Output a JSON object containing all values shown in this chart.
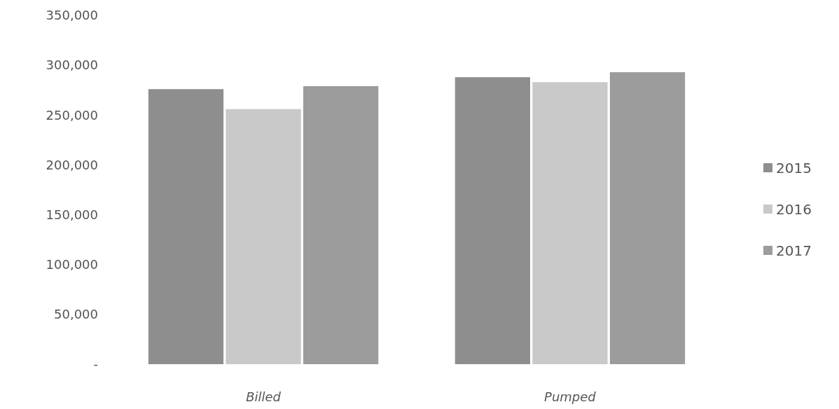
{
  "chart_data": {
    "type": "bar",
    "categories": [
      "Billed",
      "Pumped"
    ],
    "series": [
      {
        "name": "2015",
        "color": "#8e8e8e",
        "values": [
          276000,
          288000
        ]
      },
      {
        "name": "2016",
        "color": "#c9c9c9",
        "values": [
          256000,
          283000
        ]
      },
      {
        "name": "2017",
        "color": "#9c9c9c",
        "values": [
          279000,
          293000
        ]
      }
    ],
    "ylim": [
      0,
      350000
    ],
    "yticks": [
      {
        "value": 0,
        "label": "-"
      },
      {
        "value": 50000,
        "label": "50,000"
      },
      {
        "value": 100000,
        "label": "100,000"
      },
      {
        "value": 150000,
        "label": "150,000"
      },
      {
        "value": 200000,
        "label": "200,000"
      },
      {
        "value": 250000,
        "label": "250,000"
      },
      {
        "value": 300000,
        "label": "300,000"
      },
      {
        "value": 350000,
        "label": "350,000"
      }
    ],
    "grid": false,
    "legend": "right"
  }
}
